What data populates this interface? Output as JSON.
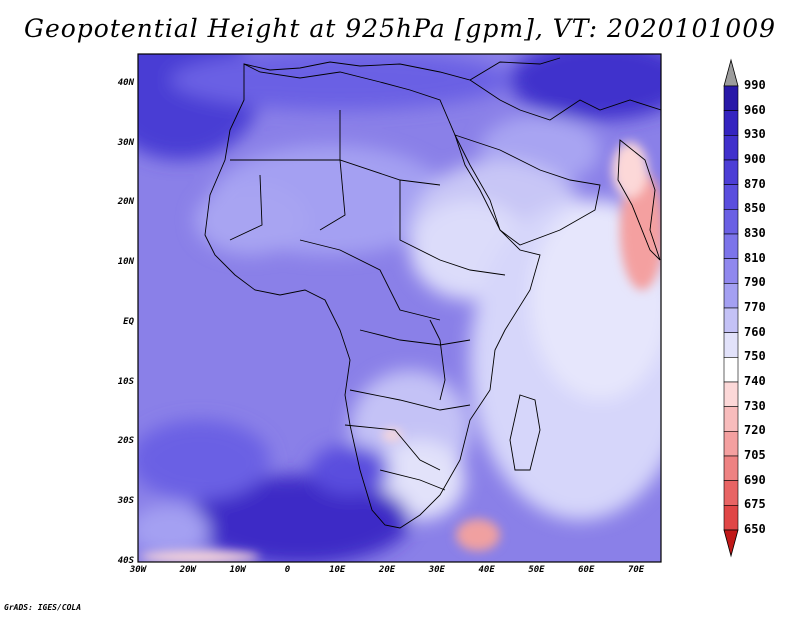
{
  "title": "Geopotential Height at 925hPa [gpm], VT: 2020101009",
  "credit": "GrADS: IGES/COLA",
  "map": {
    "lat_labels": [
      "40N",
      "30N",
      "20N",
      "10N",
      "EQ",
      "10S",
      "20S",
      "30S",
      "40S"
    ],
    "lon_labels": [
      "30W",
      "20W",
      "10W",
      "0",
      "10E",
      "20E",
      "30E",
      "40E",
      "50E",
      "60E",
      "70E"
    ],
    "lat_range": [
      -40,
      45
    ],
    "lon_range": [
      -30,
      75
    ],
    "land_outline_color": "#000000"
  },
  "colorbar": {
    "levels": [
      "990",
      "960",
      "930",
      "900",
      "870",
      "850",
      "830",
      "810",
      "790",
      "770",
      "760",
      "750",
      "740",
      "730",
      "720",
      "705",
      "690",
      "675",
      "650"
    ],
    "colors": [
      "#2818a8",
      "#3424c0",
      "#4030cc",
      "#4c3ed6",
      "#5a4ede",
      "#6a60e4",
      "#7c74ea",
      "#9088ee",
      "#a4a0f2",
      "#c4c2f6",
      "#e2e2fa",
      "#ffffff",
      "#fcd8d8",
      "#f8bcbc",
      "#f4a0a0",
      "#ee8282",
      "#e86464",
      "#e04646",
      "#d22a2a",
      "#c01818"
    ]
  },
  "colors": {
    "background": "#ffffff",
    "ocean_mid": "#8c82ea",
    "deep_blue": "#3c2cc6",
    "pale": "#dcdcfa",
    "pink": "#f8bcbc"
  }
}
